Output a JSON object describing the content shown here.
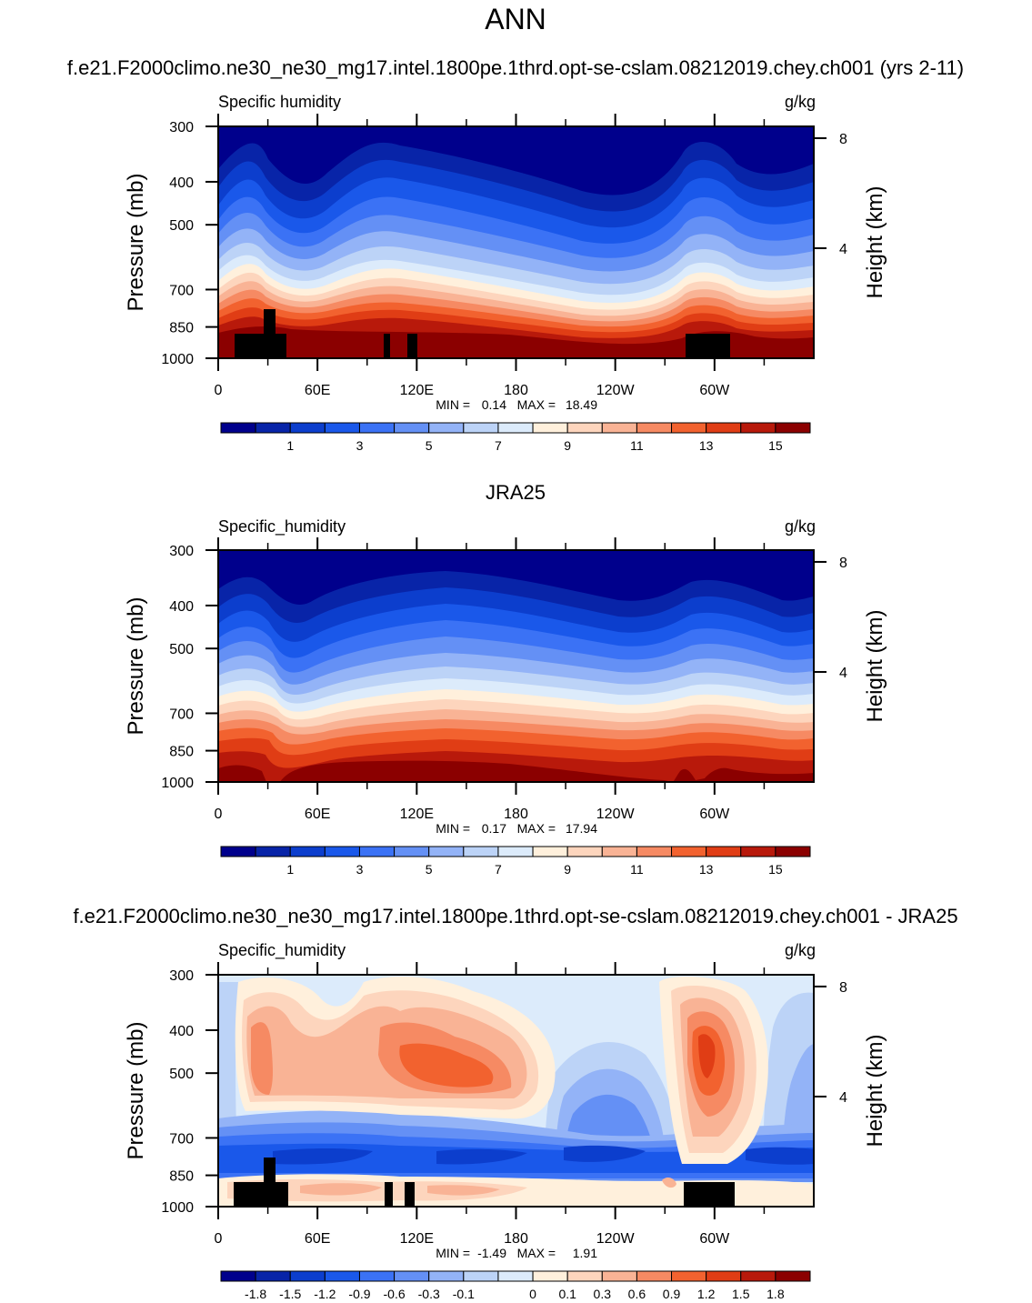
{
  "page_title": "ANN",
  "chart_data": [
    {
      "type": "heatmap",
      "heading": "f.e21.F2000climo.ne30_ne30_mg17.intel.1800pe.1thrd.opt-se-cslam.08212019.chey.ch001 (yrs 2-11)",
      "variable": "Specific humidity",
      "units": "g/kg",
      "ylabel": "Pressure (mb)",
      "y2label": "Height (km)",
      "xticks": [
        "0",
        "60E",
        "120E",
        "180",
        "120W",
        "60W"
      ],
      "yticks": [
        "300",
        "400",
        "500",
        "700",
        "850",
        "1000"
      ],
      "y2ticks": [
        "8",
        "4"
      ],
      "xlim": [
        0,
        360
      ],
      "ylim": [
        1000,
        300
      ],
      "stats": {
        "min_label": "MIN =",
        "min": "0.14",
        "max_label": "MAX =",
        "max": "18.49"
      },
      "levels": [
        0,
        1,
        2,
        3,
        4,
        5,
        6,
        7,
        8,
        9,
        10,
        11,
        12,
        13,
        14,
        15,
        16
      ],
      "colorbar_labels": [
        "1",
        "3",
        "5",
        "7",
        "9",
        "11",
        "13",
        "15"
      ]
    },
    {
      "type": "heatmap",
      "heading": "JRA25",
      "variable": "Specific_humidity",
      "units": "g/kg",
      "ylabel": "Pressure (mb)",
      "y2label": "Height (km)",
      "xticks": [
        "0",
        "60E",
        "120E",
        "180",
        "120W",
        "60W"
      ],
      "yticks": [
        "300",
        "400",
        "500",
        "700",
        "850",
        "1000"
      ],
      "y2ticks": [
        "8",
        "4"
      ],
      "xlim": [
        0,
        360
      ],
      "ylim": [
        1000,
        300
      ],
      "stats": {
        "min_label": "MIN =",
        "min": "0.17",
        "max_label": "MAX =",
        "max": "17.94"
      },
      "levels": [
        0,
        1,
        2,
        3,
        4,
        5,
        6,
        7,
        8,
        9,
        10,
        11,
        12,
        13,
        14,
        15,
        16
      ],
      "colorbar_labels": [
        "1",
        "3",
        "5",
        "7",
        "9",
        "11",
        "13",
        "15"
      ]
    },
    {
      "type": "heatmap",
      "heading": "f.e21.F2000climo.ne30_ne30_mg17.intel.1800pe.1thrd.opt-se-cslam.08212019.chey.ch001 - JRA25",
      "variable": "Specific_humidity",
      "units": "g/kg",
      "ylabel": "Pressure (mb)",
      "y2label": "Height (km)",
      "xticks": [
        "0",
        "60E",
        "120E",
        "180",
        "120W",
        "60W"
      ],
      "yticks": [
        "300",
        "400",
        "500",
        "700",
        "850",
        "1000"
      ],
      "y2ticks": [
        "8",
        "4"
      ],
      "xlim": [
        0,
        360
      ],
      "ylim": [
        1000,
        300
      ],
      "stats": {
        "min_label": "MIN =",
        "min": "-1.49",
        "max_label": "MAX =",
        "max": "1.91"
      },
      "levels": [
        -2.1,
        -1.8,
        -1.5,
        -1.2,
        -0.9,
        -0.6,
        -0.3,
        -0.1,
        0,
        0.1,
        0.3,
        0.6,
        0.9,
        1.2,
        1.5,
        1.8,
        2.1
      ],
      "colorbar_labels": [
        "-1.8",
        "-1.5",
        "-1.2",
        "-0.9",
        "-0.6",
        "-0.3",
        "-0.1",
        "0",
        "0.1",
        "0.3",
        "0.6",
        "0.9",
        "1.2",
        "1.5",
        "1.8"
      ]
    }
  ],
  "colormap": [
    "#00008c",
    "#0824a8",
    "#0c3ecd",
    "#1a58ea",
    "#3b72f5",
    "#6490f5",
    "#93b3f7",
    "#bcd3f7",
    "#dcebfb",
    "#fff0dc",
    "#fdd5bd",
    "#f9b395",
    "#f68a63",
    "#f2622f",
    "#e03d15",
    "#b8190b",
    "#8b0000"
  ]
}
